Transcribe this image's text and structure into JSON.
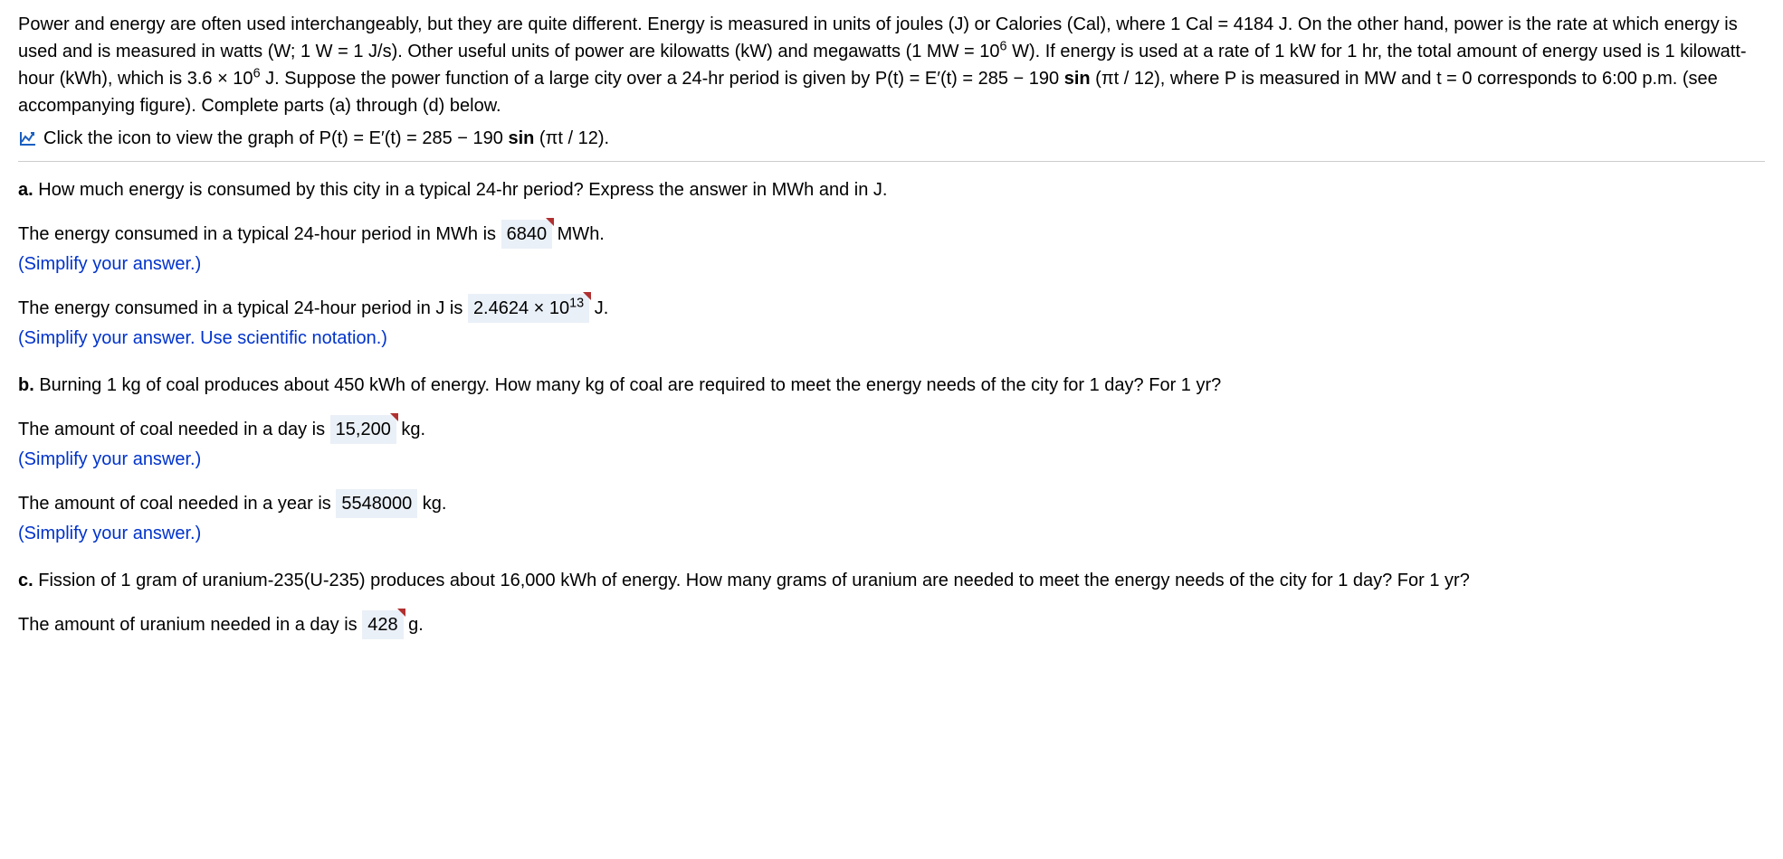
{
  "problem": {
    "intro_html": "Power and energy are often used interchangeably, but they are quite different. Energy is measured in units of joules (J) or Calories (Cal), where 1 Cal = 4184 J. On the other hand, power is the rate at which energy is used and is measured in watts (W; 1 W = 1 J/s). Other useful units of power are kilowatts (kW) and megawatts (1 MW = 10<sup>6</sup> W). If energy is used at a rate of 1 kW for 1 hr, the total amount of energy used is 1 kilowatt-hour (kWh), which is 3.6 × 10<sup>6</sup> J. Suppose the power function of a large city over a 24-hr period is given by P(t) = E′(t) = 285 − 190 <b>sin</b> (πt / 12), where P is measured in MW and t = 0 corresponds to 6:00 p.m. (see accompanying figure). Complete parts (a) through (d) below.",
    "graph_link_html": "Click the icon to view the graph of P(t) = E′(t) = 285 − 190 <b>sin</b> (πt / 12)."
  },
  "parts": {
    "a": {
      "label": "a.",
      "question": "How much energy is consumed by this city in a typical 24-hr period? Express the answer in MWh and in J.",
      "ans1_pre": "The energy consumed in a typical 24-hour period in MWh is ",
      "ans1_value": "6840",
      "ans1_post": " MWh.",
      "ans1_hint": "(Simplify your answer.)",
      "ans2_pre": "The energy consumed in a typical 24-hour period in J is ",
      "ans2_value_html": "2.4624 × 10<sup>13</sup>",
      "ans2_post": " J.",
      "ans2_hint": "(Simplify your answer. Use scientific notation.)"
    },
    "b": {
      "label": "b.",
      "question": "Burning 1 kg of coal produces about 450 kWh of energy. How many kg of coal are required to meet the energy needs of the city for 1 day? For 1 yr?",
      "ans1_pre": "The amount of coal needed in a day is ",
      "ans1_value": "15,200",
      "ans1_post": " kg.",
      "ans1_hint": "(Simplify your answer.)",
      "ans2_pre": "The amount of coal needed in a year is ",
      "ans2_value": "5548000",
      "ans2_post": " kg.",
      "ans2_hint": "(Simplify your answer.)"
    },
    "c": {
      "label": "c.",
      "question": "Fission of 1 gram of uranium-235(U-235) produces about 16,000 kWh of energy. How many grams of uranium are needed to meet the energy needs of the city for 1 day? For 1 yr?",
      "ans1_pre": "The amount of uranium needed in a day is ",
      "ans1_value": "428",
      "ans1_post": " g."
    }
  },
  "colors": {
    "hint": "#0033cc",
    "answer_bg": "#eaf0f7",
    "flag": "#b03030",
    "icon_stroke": "#1b5fc1"
  }
}
